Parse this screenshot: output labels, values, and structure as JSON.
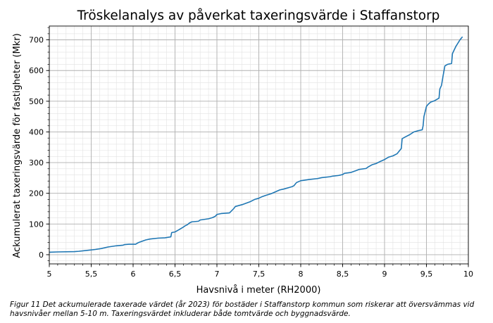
{
  "chart_data": {
    "type": "line",
    "title": "Tröskelanalys av påverkat taxeringsvärde i Staffanstorp",
    "xlabel": "Havsnivå i meter (RH2000)",
    "ylabel": "Ackumulerat taxeringsvärde för fastigheter (Mkr)",
    "xlim": [
      5,
      10
    ],
    "ylim": [
      -30,
      745
    ],
    "x_ticks": [
      5,
      5.5,
      6,
      6.5,
      7,
      7.5,
      8,
      8.5,
      9,
      9.5,
      10
    ],
    "x_tick_labels": [
      "5",
      "5,5",
      "6",
      "6,5",
      "7",
      "7,5",
      "8",
      "8,5",
      "9",
      "9,5",
      "10"
    ],
    "y_ticks": [
      0,
      100,
      200,
      300,
      400,
      500,
      600,
      700
    ],
    "y_tick_labels": [
      "0",
      "100",
      "200",
      "300",
      "400",
      "500",
      "600",
      "700"
    ],
    "grid": "major+minor",
    "line_color": "#1f77b4",
    "series": [
      {
        "x": [
          5.0,
          5.1,
          5.3,
          5.35,
          5.45,
          5.55,
          5.62,
          5.7,
          5.8,
          5.88,
          5.9,
          5.95,
          6.03,
          6.06,
          6.1,
          6.15,
          6.2,
          6.3,
          6.38,
          6.45,
          6.46,
          6.5,
          6.55,
          6.6,
          6.62,
          6.65,
          6.67,
          6.7,
          6.78,
          6.8,
          6.9,
          6.95,
          6.98,
          7.0,
          7.05,
          7.15,
          7.2,
          7.22,
          7.3,
          7.4,
          7.45,
          7.5,
          7.53,
          7.58,
          7.65,
          7.7,
          7.75,
          7.8,
          7.85,
          7.9,
          7.92,
          7.95,
          8.0,
          8.1,
          8.2,
          8.25,
          8.35,
          8.38,
          8.45,
          8.5,
          8.52,
          8.6,
          8.65,
          8.7,
          8.78,
          8.8,
          8.85,
          8.9,
          8.95,
          9.0,
          9.05,
          9.1,
          9.15,
          9.2,
          9.21,
          9.25,
          9.3,
          9.35,
          9.4,
          9.45,
          9.46,
          9.47,
          9.5,
          9.52,
          9.55,
          9.6,
          9.65,
          9.66,
          9.68,
          9.7,
          9.72,
          9.75,
          9.8,
          9.81,
          9.85,
          9.9,
          9.93
        ],
        "y": [
          8,
          9,
          10,
          11,
          14,
          17,
          20,
          25,
          29,
          31,
          33,
          34,
          34,
          39,
          43,
          48,
          51,
          54,
          55,
          58,
          72,
          74,
          82,
          90,
          94,
          98,
          103,
          107,
          109,
          113,
          117,
          121,
          125,
          131,
          134,
          136,
          150,
          157,
          163,
          173,
          180,
          184,
          188,
          193,
          199,
          205,
          211,
          214,
          218,
          222,
          225,
          235,
          241,
          245,
          248,
          251,
          254,
          256,
          258,
          261,
          265,
          268,
          273,
          278,
          281,
          285,
          293,
          297,
          304,
          310,
          318,
          322,
          329,
          346,
          378,
          384,
          391,
          400,
          404,
          407,
          420,
          450,
          483,
          490,
          497,
          502,
          510,
          540,
          552,
          585,
          615,
          620,
          623,
          655,
          678,
          700,
          710
        ]
      }
    ]
  },
  "caption": "Figur 11 Det ackumulerade taxerade värdet (år 2023) för bostäder i Staffanstorp kommun som riskerar att översvämmas vid havsnivåer mellan 5-10 m. Taxeringsvärdet inkluderar både tomtvärde och byggnadsvärde."
}
